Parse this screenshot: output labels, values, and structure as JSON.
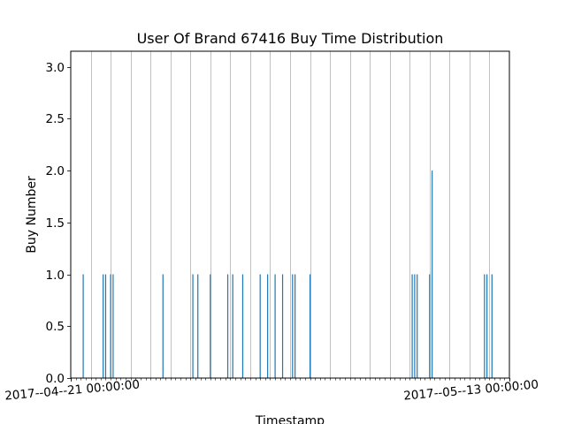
{
  "chart_data": {
    "type": "bar",
    "title": "User Of Brand 67416 Buy Time Distribution",
    "xlabel": "Timestamp",
    "ylabel": "Buy Number",
    "ylim": [
      0,
      3.15
    ],
    "xlim": [
      "2017-04-21 00:00:00",
      "2017-05-13 00:00:00"
    ],
    "yticks": [
      0.0,
      0.5,
      1.0,
      1.5,
      2.0,
      2.5,
      3.0
    ],
    "ytick_labels": [
      "0.0",
      "0.5",
      "1.0",
      "1.5",
      "2.0",
      "2.5",
      "3.0"
    ],
    "xtick_labels": [
      "2017--04--21 00:00:00",
      "2017--05--13 00:00:00"
    ],
    "grid_vertical": true,
    "bar_color": "#1f77b4",
    "grid_color": "#b0b0b0",
    "x": [
      "2017-04-21 15:00",
      "2017-04-22 15:00",
      "2017-04-22 18:00",
      "2017-04-23 00:00",
      "2017-04-23 03:00",
      "2017-04-25 15:00",
      "2017-04-27 03:00",
      "2017-04-27 09:00",
      "2017-04-28 00:00",
      "2017-04-28 21:00",
      "2017-04-29 03:00",
      "2017-04-29 15:00",
      "2017-04-30 12:00",
      "2017-04-30 21:00",
      "2017-05-01 06:00",
      "2017-05-01 15:00",
      "2017-05-02 03:00",
      "2017-05-02 06:00",
      "2017-05-03 00:00",
      "2017-05-08 03:00",
      "2017-05-08 06:00",
      "2017-05-08 09:00",
      "2017-05-09 00:00",
      "2017-05-09 03:00",
      "2017-05-11 18:00",
      "2017-05-11 21:00",
      "2017-05-12 03:00"
    ],
    "values": [
      1,
      1,
      1,
      1,
      1,
      1,
      1,
      1,
      1,
      1,
      1,
      1,
      1,
      1,
      1,
      1,
      1,
      1,
      1,
      1,
      1,
      1,
      1,
      2,
      1,
      1,
      1
    ]
  }
}
